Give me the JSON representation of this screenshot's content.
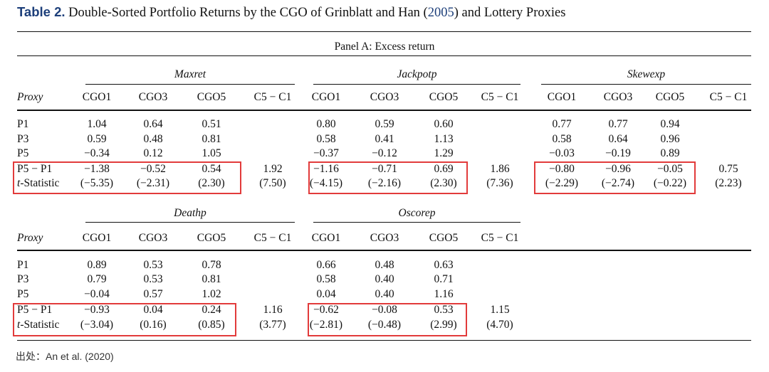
{
  "caption": {
    "table_no": "Table 2.",
    "text_before": "Double-Sorted Portfolio Returns by the CGO of Grinblatt and Han (",
    "ref_year": "2005",
    "text_after": ") and Lottery Proxies"
  },
  "panel_title": "Panel A: Excess return",
  "proxy_label": "Proxy",
  "columns": [
    "CGO1",
    "CGO3",
    "CGO5",
    "C5 − C1"
  ],
  "blocks": [
    {
      "groups": [
        {
          "name": "Maxret",
          "rows": [
            [
              "1.04",
              "0.64",
              "0.51",
              ""
            ],
            [
              "0.59",
              "0.48",
              "0.81",
              ""
            ],
            [
              "−0.34",
              "0.12",
              "1.05",
              ""
            ],
            [
              "−1.38",
              "−0.52",
              "0.54",
              "1.92"
            ],
            [
              "(−5.35)",
              "(−2.31)",
              "(2.30)",
              "(7.50)"
            ]
          ]
        },
        {
          "name": "Jackpotp",
          "rows": [
            [
              "0.80",
              "0.59",
              "0.60",
              ""
            ],
            [
              "0.58",
              "0.41",
              "1.13",
              ""
            ],
            [
              "−0.37",
              "−0.12",
              "1.29",
              ""
            ],
            [
              "−1.16",
              "−0.71",
              "0.69",
              "1.86"
            ],
            [
              "(−4.15)",
              "(−2.16)",
              "(2.30)",
              "(7.36)"
            ]
          ]
        },
        {
          "name": "Skewexp",
          "rows": [
            [
              "0.77",
              "0.77",
              "0.94",
              ""
            ],
            [
              "0.58",
              "0.64",
              "0.96",
              ""
            ],
            [
              "−0.03",
              "−0.19",
              "0.89",
              ""
            ],
            [
              "−0.80",
              "−0.96",
              "−0.05",
              "0.75"
            ],
            [
              "(−2.29)",
              "(−2.74)",
              "(−0.22)",
              "(2.23)"
            ]
          ]
        }
      ]
    },
    {
      "groups": [
        {
          "name": "Deathp",
          "rows": [
            [
              "0.89",
              "0.53",
              "0.78",
              ""
            ],
            [
              "0.79",
              "0.53",
              "0.81",
              ""
            ],
            [
              "−0.04",
              "0.57",
              "1.02",
              ""
            ],
            [
              "−0.93",
              "0.04",
              "0.24",
              "1.16"
            ],
            [
              "(−3.04)",
              "(0.16)",
              "(0.85)",
              "(3.77)"
            ]
          ]
        },
        {
          "name": "Oscorep",
          "rows": [
            [
              "0.66",
              "0.48",
              "0.63",
              ""
            ],
            [
              "0.58",
              "0.40",
              "0.71",
              ""
            ],
            [
              "0.04",
              "0.40",
              "1.16",
              ""
            ],
            [
              "−0.62",
              "−0.08",
              "0.53",
              "1.15"
            ],
            [
              "(−2.81)",
              "(−0.48)",
              "(2.99)",
              "(4.70)"
            ]
          ]
        }
      ]
    }
  ],
  "row_labels": [
    {
      "pre": "",
      "ital": "",
      "post": "P1"
    },
    {
      "pre": "",
      "ital": "",
      "post": "P3"
    },
    {
      "pre": "",
      "ital": "",
      "post": "P5"
    },
    {
      "pre": "",
      "ital": "",
      "post": "P5 − P1"
    },
    {
      "pre": "",
      "ital": "t",
      "post": "-Statistic"
    }
  ],
  "source": "出处：An et al. (2020)",
  "highlight_color": "#e23b3b"
}
